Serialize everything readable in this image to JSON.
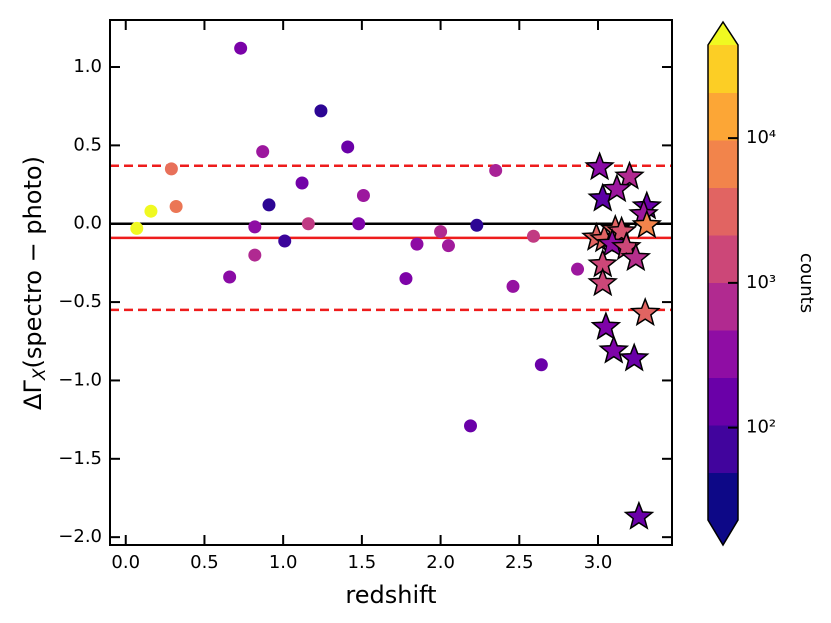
{
  "chart_data": {
    "type": "scatter",
    "xlabel": "redshift",
    "ylabel": [
      "ΔΓ",
      "X",
      "(spectro − photo)"
    ],
    "xlim": [
      -0.1,
      3.47
    ],
    "ylim": [
      -2.05,
      1.3
    ],
    "xticks": [
      {
        "value": 0,
        "label": "0.0"
      },
      {
        "value": 0.5,
        "label": "0.5"
      },
      {
        "value": 1,
        "label": "1.0"
      },
      {
        "value": 1.5,
        "label": "1.5"
      },
      {
        "value": 2,
        "label": "2.0"
      },
      {
        "value": 2.5,
        "label": "2.5"
      },
      {
        "value": 3,
        "label": "3.0"
      }
    ],
    "yticks": [
      {
        "value": 1,
        "label": "1.0"
      },
      {
        "value": 0.5,
        "label": "0.5"
      },
      {
        "value": 0,
        "label": "0.0"
      },
      {
        "value": -0.5,
        "label": "−0.5"
      },
      {
        "value": -1,
        "label": "−1.0"
      },
      {
        "value": -1.5,
        "label": "−1.5"
      },
      {
        "value": -2,
        "label": "−2.0"
      }
    ],
    "hlines": [
      {
        "value": 0,
        "color": "#000000",
        "dash": false
      },
      {
        "value": -0.09,
        "color": "#ee1c1c",
        "dash": false
      },
      {
        "value": 0.37,
        "color": "#ee1c1c",
        "dash": true
      },
      {
        "value": -0.55,
        "color": "#ee1c1c",
        "dash": true
      }
    ],
    "series": [
      {
        "marker": "circle",
        "x": [
          0.07,
          0.16,
          0.29,
          0.32,
          0.73,
          0.66,
          0.82,
          0.82,
          0.87,
          0.91,
          1.01,
          1.12,
          1.16,
          1.24,
          1.41,
          1.48,
          1.51,
          1.78,
          1.85,
          2.0,
          2.05,
          2.19,
          2.23,
          2.35,
          2.46,
          2.59,
          2.64,
          2.87
        ],
        "values": [
          -0.03,
          0.08,
          0.35,
          0.11,
          1.12,
          -0.34,
          -0.02,
          -0.2,
          0.46,
          0.12,
          -0.11,
          0.26,
          0.0,
          0.72,
          0.49,
          0.0,
          0.18,
          -0.35,
          -0.13,
          -0.05,
          -0.14,
          -1.29,
          -0.01,
          0.34,
          -0.4,
          -0.08,
          -0.9,
          -0.29
        ],
        "colors": [
          "#f0f921",
          "#f0f921",
          "#e8705a",
          "#eb7655",
          "#7a02a8",
          "#8a0ba5",
          "#8e0ca4",
          "#b02991",
          "#9c179e",
          "#2c0594",
          "#3b049a",
          "#7201a8",
          "#c03a83",
          "#2c0594",
          "#6a00a8",
          "#7e03a8",
          "#9c179e",
          "#7e03a8",
          "#8d0ba4",
          "#b12a90",
          "#a01a9c",
          "#6a00a8",
          "#2c0594",
          "#a82296",
          "#9512a1",
          "#c13b82",
          "#6a00a8",
          "#9c179e"
        ]
      },
      {
        "marker": "star",
        "x": [
          3.01,
          3.03,
          3.2,
          3.31,
          3.29,
          3.31,
          2.99,
          3.04,
          3.11,
          3.15,
          3.09,
          3.18,
          3.12,
          3.03,
          3.03,
          3.24,
          3.3,
          3.05,
          3.1,
          3.23,
          3.26
        ],
        "values": [
          0.36,
          0.16,
          0.3,
          0.11,
          0.06,
          -0.01,
          -0.09,
          -0.1,
          -0.04,
          -0.05,
          -0.13,
          -0.15,
          0.22,
          -0.26,
          -0.38,
          -0.22,
          -0.57,
          -0.66,
          -0.81,
          -0.86,
          -1.87
        ],
        "colors": [
          "#8a0ba5",
          "#5c01a6",
          "#b12a90",
          "#6a00a8",
          "#9c179e",
          "#f2844b",
          "#e16462",
          "#e16462",
          "#e16462",
          "#d5546e",
          "#8f0da4",
          "#cc4778",
          "#9c179e",
          "#cc4778",
          "#cc4778",
          "#b52f8c",
          "#e16462",
          "#7e03a8",
          "#7e03a8",
          "#6a00a8",
          "#6a00a8"
        ]
      }
    ],
    "colorbar": {
      "label": "counts",
      "log": true,
      "lim": [
        23,
        44000
      ],
      "colors": [
        "#0d0887",
        "#41049d",
        "#6a00a8",
        "#8f0da4",
        "#b12a90",
        "#cc4778",
        "#e16462",
        "#f2844b",
        "#fca636",
        "#fcce25"
      ],
      "extend_colors": [
        "#0d0887",
        "#f0f921"
      ],
      "ticks": [
        {
          "value": 100,
          "label": "10²"
        },
        {
          "value": 1000,
          "label": "10³"
        },
        {
          "value": 10000,
          "label": "10⁴"
        }
      ]
    }
  }
}
